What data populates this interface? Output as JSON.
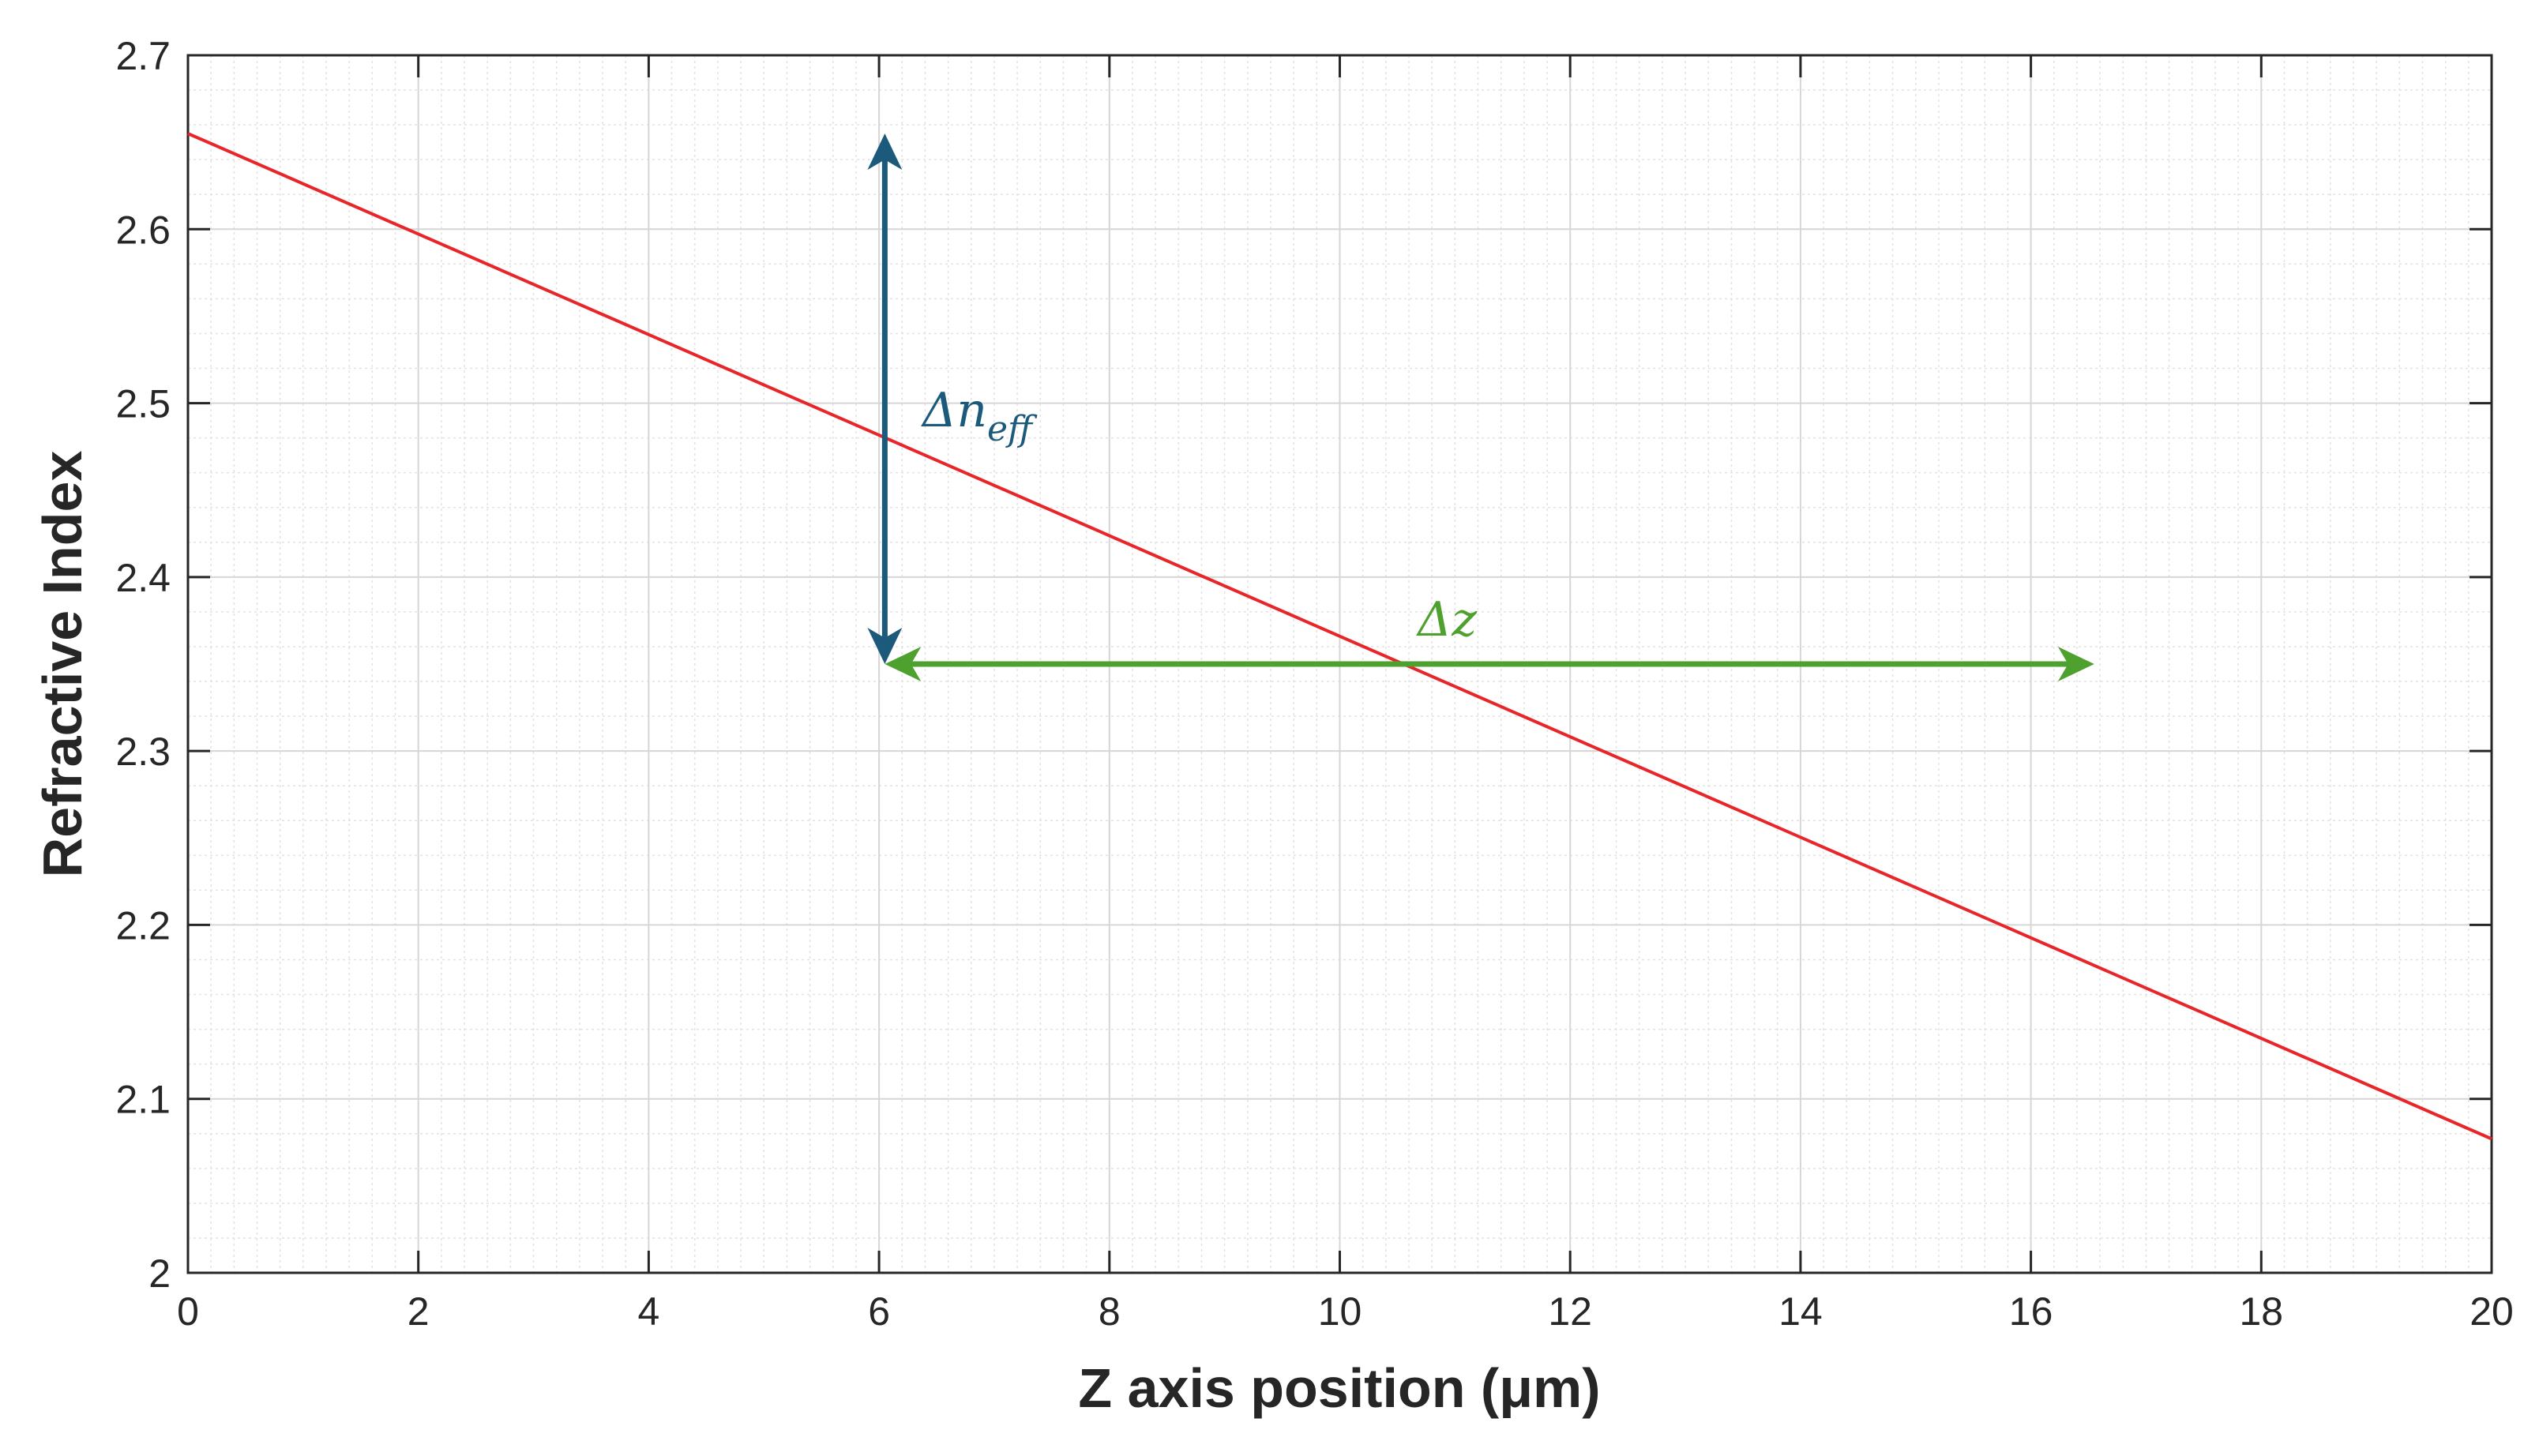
{
  "chart_data": {
    "type": "line",
    "title": "",
    "xlabel": "Z axis position (μm)",
    "ylabel": "Refractive Index",
    "xlim": [
      0,
      20
    ],
    "ylim": [
      2.0,
      2.7
    ],
    "x_ticks": [
      "0",
      "2",
      "4",
      "6",
      "8",
      "10",
      "12",
      "14",
      "16",
      "18",
      "20"
    ],
    "y_ticks": [
      "2",
      "2.1",
      "2.2",
      "2.3",
      "2.4",
      "2.5",
      "2.6",
      "2.7"
    ],
    "grid": true,
    "minor_grid": true,
    "series": [
      {
        "color": "#e8262a",
        "x": [
          0,
          20
        ],
        "y": [
          2.655,
          2.077
        ]
      }
    ],
    "annotations": [
      {
        "kind": "double-arrow-vertical",
        "label_main": "Δn",
        "label_sub": "eff",
        "color": "#1b5a7a",
        "x": 6.05,
        "y_start": 2.35,
        "y_end": 2.655
      },
      {
        "kind": "double-arrow-horizontal",
        "label_main": "Δz",
        "color": "#4ea12f",
        "y": 2.35,
        "x_start": 6.05,
        "x_end": 16.55
      }
    ]
  }
}
